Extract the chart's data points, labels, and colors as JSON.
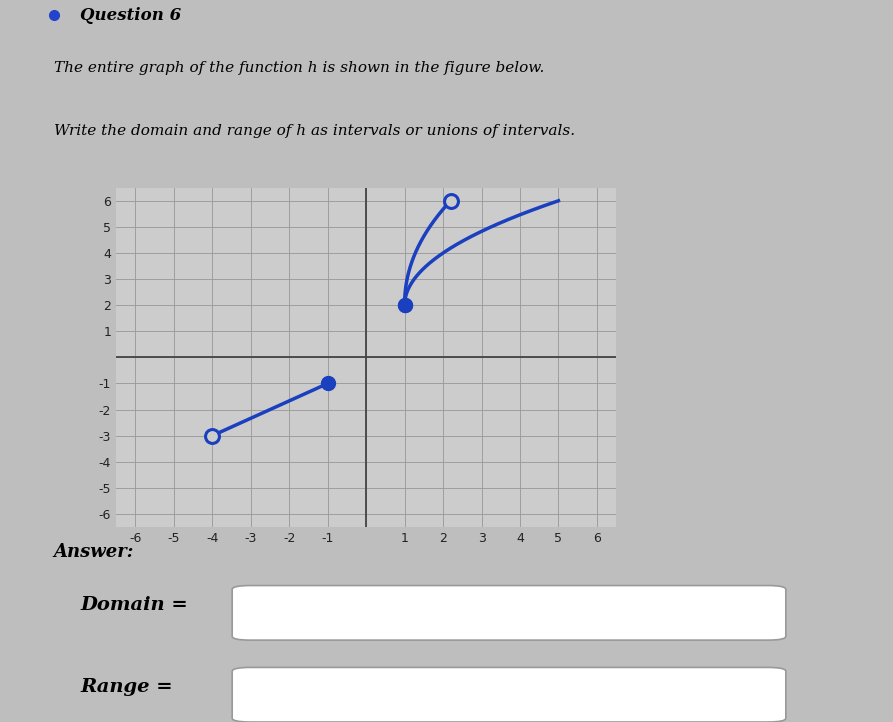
{
  "title": "Question 6",
  "description_text1": "The entire graph of the function h is shown in the figure below.",
  "description_text2": "Write the domain and range of h as intervals or unions of intervals.",
  "answer_label": "Answer:",
  "domain_label": "Domain =",
  "range_label": "Range =",
  "xlim": [
    -6.5,
    6.5
  ],
  "ylim": [
    -6.5,
    6.5
  ],
  "xticks": [
    -6,
    -5,
    -4,
    -3,
    -2,
    -1,
    0,
    1,
    2,
    3,
    4,
    5,
    6
  ],
  "yticks": [
    -6,
    -5,
    -4,
    -3,
    -2,
    -1,
    0,
    1,
    2,
    3,
    4,
    5,
    6
  ],
  "line_segment": {
    "x_open": -4,
    "y_open": -3,
    "x_closed": -1,
    "y_closed": -1
  },
  "curve_segment": {
    "x_closed": 1,
    "y_closed": 2
  },
  "curve_color": "#1a3fbf",
  "bg_color": "#bebebe",
  "graph_bg": "#cccccc",
  "tick_fontsize": 9
}
